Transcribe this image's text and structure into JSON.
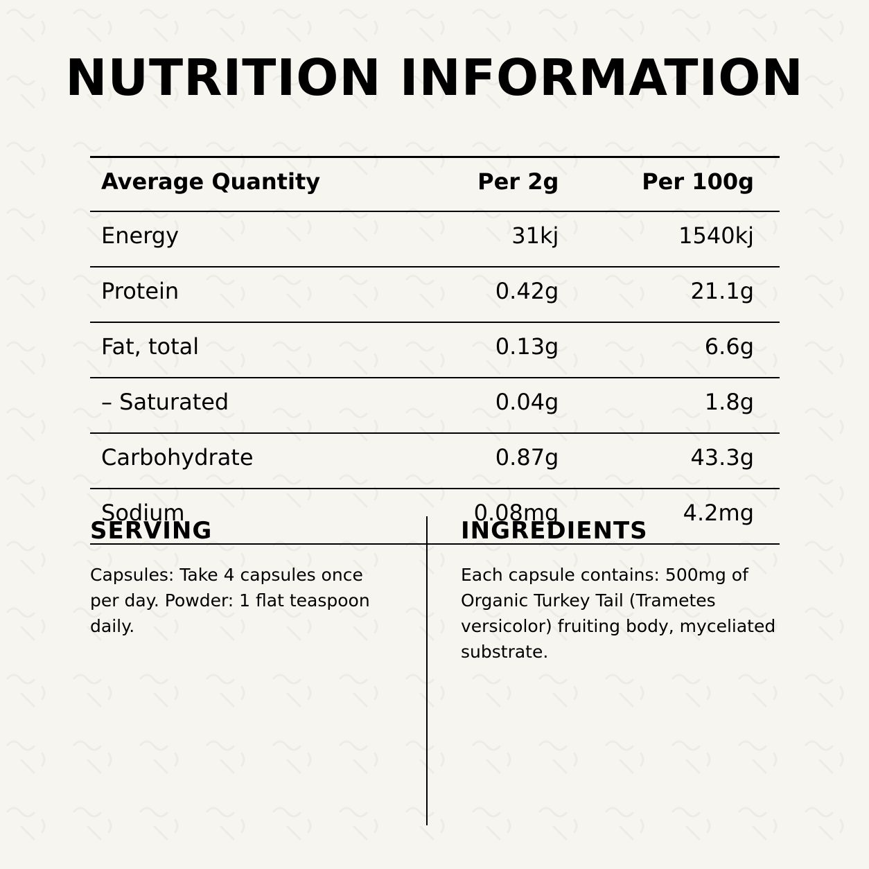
{
  "title": "NUTRITION INFORMATION",
  "table": {
    "headers": [
      "Average Quantity",
      "Per 2g",
      "Per 100g"
    ],
    "rows": [
      [
        "Energy",
        "31kj",
        "1540kj"
      ],
      [
        "Protein",
        "0.42g",
        "21.1g"
      ],
      [
        "Fat, total",
        "0.13g",
        "6.6g"
      ],
      [
        "– Saturated",
        "0.04g",
        "1.8g"
      ],
      [
        "Carbohydrate",
        "0.87g",
        "43.3g"
      ],
      [
        "Sodium",
        "0.08mg",
        "4.2mg"
      ]
    ]
  },
  "serving": {
    "heading": "SERVING",
    "text": "Capsules: Take 4 capsules once per day. Powder: 1 flat teaspoon daily."
  },
  "ingredients": {
    "heading": "INGREDIENTS",
    "text": "Each capsule contains: 500mg of Organic Turkey Tail (Trametes versicolor) fruiting body, myceliated substrate."
  },
  "colors": {
    "background": "#f7f5f0",
    "text": "#000000"
  }
}
